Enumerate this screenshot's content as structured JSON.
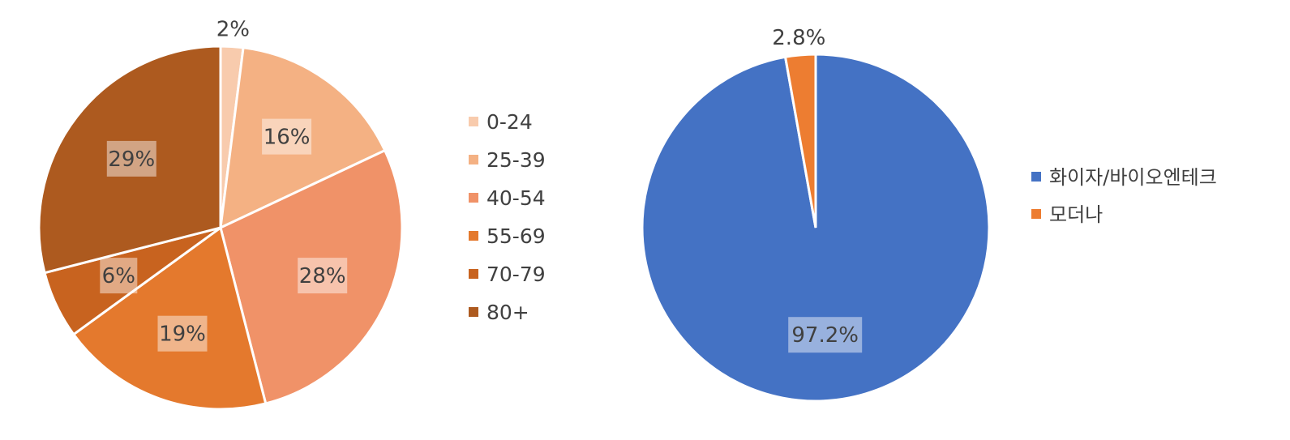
{
  "chart_data": [
    {
      "type": "pie",
      "title": "",
      "categories": [
        "0-24",
        "25-39",
        "40-54",
        "55-69",
        "70-79",
        "80+"
      ],
      "values": [
        2,
        16,
        28,
        19,
        6,
        29
      ],
      "labels": [
        "2%",
        "16%",
        "28%",
        "19%",
        "6%",
        "29%"
      ],
      "colors": [
        "#F8CBAD",
        "#F4B183",
        "#F09268",
        "#E4792D",
        "#C8631F",
        "#AD5A1F"
      ],
      "legend_position": "right"
    },
    {
      "type": "pie",
      "title": "",
      "categories": [
        "화이자/바이오엔테크",
        "모더나"
      ],
      "values": [
        97.2,
        2.8
      ],
      "labels": [
        "97.2%",
        "2.8%"
      ],
      "colors": [
        "#4472C4",
        "#ED7D31"
      ],
      "legend_position": "right"
    }
  ]
}
